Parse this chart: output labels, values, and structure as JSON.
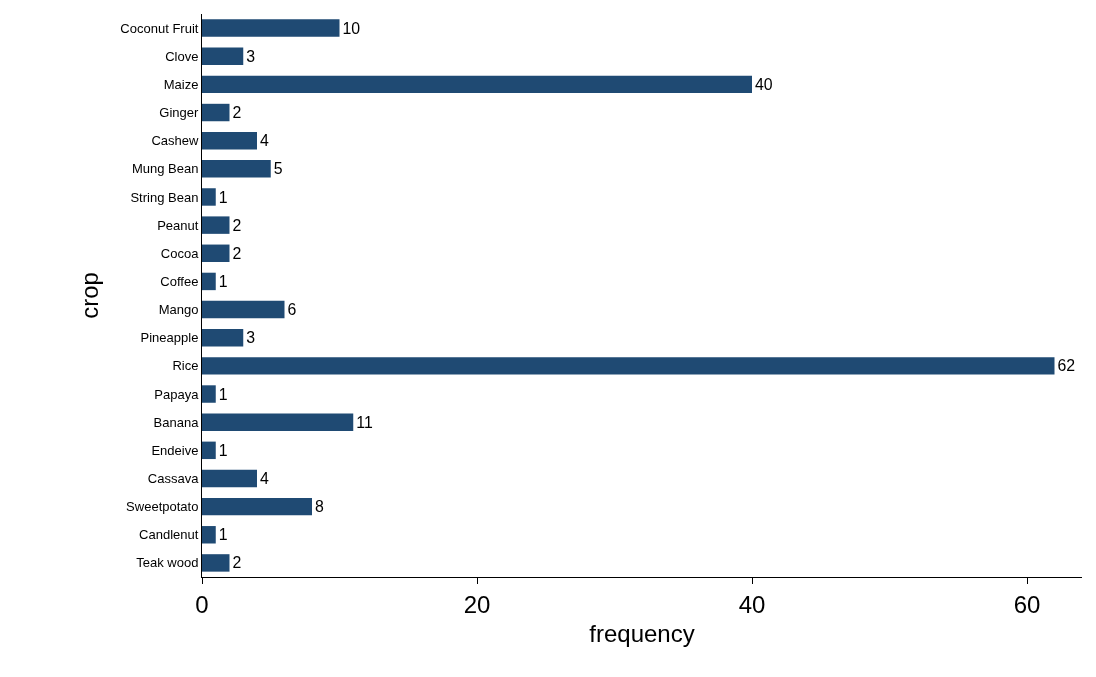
{
  "chart_data": {
    "type": "bar",
    "orientation": "horizontal",
    "xlabel": "frequency",
    "ylabel": "crop",
    "categories": [
      "Coconut Fruit",
      "Clove",
      "Maize",
      "Ginger",
      "Cashew",
      "Mung Bean",
      "String Bean",
      "Peanut",
      "Cocoa",
      "Coffee",
      "Mango",
      "Pineapple",
      "Rice",
      "Papaya",
      "Banana",
      "Endeive",
      "Cassava",
      "Sweetpotato",
      "Candlenut",
      "Teak wood"
    ],
    "values": [
      10,
      3,
      40,
      2,
      4,
      5,
      1,
      2,
      2,
      1,
      6,
      3,
      62,
      1,
      11,
      1,
      4,
      8,
      1,
      2
    ],
    "color": "#1f4a73",
    "xlim": [
      0,
      64
    ],
    "xticks": [
      0,
      20,
      40,
      60
    ],
    "grid": false,
    "data_labels": true,
    "legend": false
  }
}
